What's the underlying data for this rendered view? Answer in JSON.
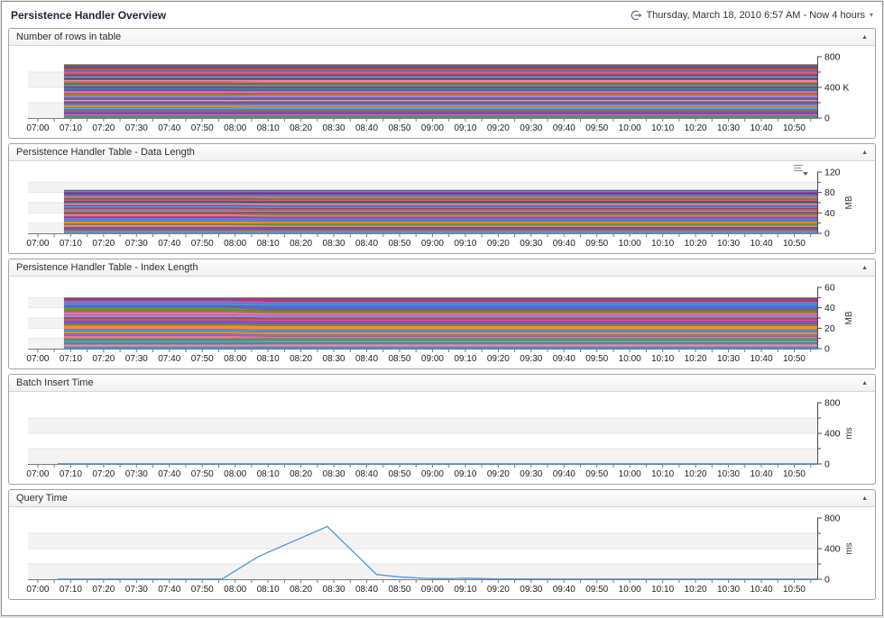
{
  "page": {
    "title": "Persistence Handler Overview",
    "timeframe_label": "Thursday, March 18, 2010 6:57 AM - Now 4 hours"
  },
  "icons": {
    "timeframe": "clock-forward-arrow",
    "collapse_glyph": "▲",
    "caret_glyph": "▾",
    "legend_menu": "list-lines-dropdown"
  },
  "colors": {
    "accent_line": "#4a97d9",
    "axis": "#7a7a7a",
    "band_gray": "#f3f3f3",
    "grid": "#e6e6e6"
  },
  "panels": [
    {
      "title": "Number of rows in table"
    },
    {
      "title": "Persistence Handler Table - Data Length"
    },
    {
      "title": "Persistence Handler Table - Index Length"
    },
    {
      "title": "Batch Insert Time"
    },
    {
      "title": "Query Time"
    }
  ],
  "x_axis": {
    "start": "06:57",
    "end": "10:57",
    "tick_every_min": 5,
    "label_every_min": 10,
    "labels": [
      "07:00",
      "07:10",
      "07:20",
      "07:30",
      "07:40",
      "07:50",
      "08:00",
      "08:10",
      "08:20",
      "08:30",
      "08:40",
      "08:50",
      "09:00",
      "09:10",
      "09:20",
      "09:30",
      "09:40",
      "09:50",
      "10:00",
      "10:10",
      "10:20",
      "10:30",
      "10:40",
      "10:50"
    ]
  },
  "chart_data": [
    {
      "type": "area",
      "title": "Number of rows in table",
      "ylabel": "",
      "ylim": [
        0,
        800
      ],
      "yticks": [
        {
          "v": 0,
          "l": "0"
        },
        {
          "v": 400,
          "l": "400 K"
        },
        {
          "v": 800,
          "l": "800"
        }
      ],
      "minor": 200,
      "x_range": [
        "06:57",
        "10:57"
      ],
      "data_start": "07:08",
      "shift": [
        "07:57",
        "08:09"
      ],
      "stack_total_before": 700,
      "stack_total_after": 700,
      "bands": [
        [
          "#3f9bdc",
          16
        ],
        [
          "#8a8a2e",
          8
        ],
        [
          "#ee6fa5",
          14
        ],
        [
          "#a05050",
          10
        ],
        [
          "#6f5bd1",
          18
        ],
        [
          "#e8538c",
          12
        ],
        [
          "#5f9e3e",
          10
        ],
        [
          "#45aee8",
          20,
          24
        ],
        [
          "#f08f33",
          22,
          18
        ],
        [
          "#8a6fd1",
          16
        ],
        [
          "#b5329b",
          10
        ],
        [
          "#2f9090",
          9
        ],
        [
          "#f28bb1",
          18
        ],
        [
          "#4f6fd0",
          12
        ],
        [
          "#b5534b",
          10
        ],
        [
          "#9b8ae0",
          20,
          24
        ],
        [
          "#e07b20",
          12
        ],
        [
          "#8a8a2e",
          10
        ],
        [
          "#ee6fa5",
          24,
          20
        ],
        [
          "#7545bb",
          14
        ],
        [
          "#3f9bdc",
          12
        ],
        [
          "#8a6a4a",
          9
        ],
        [
          "#c23b5e",
          12
        ],
        [
          "#45aee8",
          14
        ],
        [
          "#5f9e3e",
          9
        ],
        [
          "#6f5bd1",
          13,
          9
        ],
        [
          "#f08f33",
          11
        ],
        [
          "#f28bb1",
          18,
          22
        ],
        [
          "#3b4db8",
          11
        ],
        [
          "#a05050",
          9
        ],
        [
          "#9b8ae0",
          14
        ],
        [
          "#2f9090",
          8
        ],
        [
          "#b5329b",
          12
        ],
        [
          "#9aa83a",
          10
        ],
        [
          "#e8538c",
          16
        ],
        [
          "#3f9bdc",
          12
        ],
        [
          "#8a6fd1",
          11
        ],
        [
          "#e07b20",
          9
        ],
        [
          "#c23b5e",
          10
        ],
        [
          "#a05195",
          9
        ],
        [
          "#4f6fd0",
          10
        ],
        [
          "#6e6e22",
          12
        ]
      ]
    },
    {
      "type": "area",
      "title": "Persistence Handler Table - Data Length",
      "ylabel": "MB",
      "ylim": [
        0,
        120
      ],
      "yticks": [
        {
          "v": 0,
          "l": "0"
        },
        {
          "v": 40,
          "l": "40"
        },
        {
          "v": 80,
          "l": "80"
        },
        {
          "v": 120,
          "l": "120"
        }
      ],
      "minor": 20,
      "x_range": [
        "06:57",
        "10:57"
      ],
      "data_start": "07:08",
      "shift": [
        "07:59",
        "08:12"
      ],
      "stack_total_before": 85,
      "stack_total_after": 85,
      "bands": [
        [
          "#45aee8",
          10
        ],
        [
          "#ee6fa5",
          12
        ],
        [
          "#8a8a2e",
          7
        ],
        [
          "#6f5bd1",
          14
        ],
        [
          "#b5534b",
          8
        ],
        [
          "#f28bb1",
          16,
          12
        ],
        [
          "#5f9e3e",
          8,
          12
        ],
        [
          "#f08f33",
          18
        ],
        [
          "#3f9bdc",
          14
        ],
        [
          "#8a6fd1",
          16
        ],
        [
          "#b5329b",
          8
        ],
        [
          "#ee6fa5",
          20,
          16
        ],
        [
          "#8a8a2e",
          9,
          13
        ],
        [
          "#a05050",
          8
        ],
        [
          "#9b8ae0",
          14
        ],
        [
          "#e07b20",
          10
        ],
        [
          "#c23b5e",
          9
        ],
        [
          "#45aee8",
          12
        ],
        [
          "#6f5bd1",
          10
        ],
        [
          "#f28bb1",
          14
        ],
        [
          "#5f9e3e",
          8
        ],
        [
          "#3b4db8",
          9
        ],
        [
          "#e8538c",
          12,
          16
        ],
        [
          "#8a6a4a",
          7
        ],
        [
          "#9aa83a",
          8,
          12
        ],
        [
          "#ee6fa5",
          13,
          9
        ],
        [
          "#3f9bdc",
          10
        ],
        [
          "#7545bb",
          11
        ],
        [
          "#b5329b",
          8
        ],
        [
          "#8a6fd1",
          12
        ],
        [
          "#2f9090",
          6
        ]
      ]
    },
    {
      "type": "area",
      "title": "Persistence Handler Table - Index Length",
      "ylabel": "MB",
      "ylim": [
        0,
        60
      ],
      "yticks": [
        {
          "v": 0,
          "l": "0"
        },
        {
          "v": 20,
          "l": "20"
        },
        {
          "v": 40,
          "l": "40"
        },
        {
          "v": 60,
          "l": "60"
        }
      ],
      "minor": 10,
      "x_range": [
        "06:57",
        "10:57"
      ],
      "data_start": "07:08",
      "shift": [
        "07:58",
        "08:10"
      ],
      "stack_total_before": 50,
      "stack_total_after": 50,
      "bands": [
        [
          "#3f9bdc",
          8
        ],
        [
          "#f28bb1",
          10
        ],
        [
          "#8a8a2e",
          6
        ],
        [
          "#45aee8",
          9
        ],
        [
          "#5f9e3e",
          8
        ],
        [
          "#ee6fa5",
          12,
          8
        ],
        [
          "#8a6fd1",
          8
        ],
        [
          "#f08f33",
          9
        ],
        [
          "#3f9bdc",
          10
        ],
        [
          "#f08f33",
          16
        ],
        [
          "#8a8a2e",
          7
        ],
        [
          "#6f5bd1",
          12
        ],
        [
          "#e8538c",
          7
        ],
        [
          "#a05050",
          6
        ],
        [
          "#9b8ae0",
          10
        ],
        [
          "#ee6fa5",
          13,
          10
        ],
        [
          "#8a8a2e",
          8
        ],
        [
          "#5f9e3e",
          10,
          4
        ],
        [
          "#6f5bd1",
          9,
          15
        ],
        [
          "#3f9bdc",
          9
        ],
        [
          "#8a6fd1",
          10
        ],
        [
          "#c23b5e",
          5,
          8
        ],
        [
          "#b5329b",
          4
        ],
        [
          "#2f9090",
          3
        ]
      ]
    },
    {
      "type": "line",
      "title": "Batch Insert Time",
      "ylabel": "ms",
      "ylim": [
        0,
        800
      ],
      "yticks": [
        {
          "v": 0,
          "l": "0"
        },
        {
          "v": 400,
          "l": "400"
        },
        {
          "v": 800,
          "l": "800"
        }
      ],
      "minor": 200,
      "x_range": [
        "06:57",
        "10:57"
      ],
      "line_color": "#4a97d9",
      "points": [
        [
          "07:06",
          3
        ],
        [
          "10:57",
          3
        ]
      ]
    },
    {
      "type": "line",
      "title": "Query Time",
      "ylabel": "ms",
      "ylim": [
        0,
        800
      ],
      "yticks": [
        {
          "v": 0,
          "l": "0"
        },
        {
          "v": 400,
          "l": "400"
        },
        {
          "v": 800,
          "l": "800"
        }
      ],
      "minor": 200,
      "x_range": [
        "06:57",
        "10:57"
      ],
      "line_color": "#4a97d9",
      "points": [
        [
          "07:06",
          3
        ],
        [
          "07:56",
          3
        ],
        [
          "08:07",
          295
        ],
        [
          "08:28",
          690
        ],
        [
          "08:43",
          62
        ],
        [
          "08:50",
          30
        ],
        [
          "08:58",
          12
        ],
        [
          "09:04",
          8
        ],
        [
          "09:10",
          14
        ],
        [
          "09:18",
          5
        ],
        [
          "09:40",
          3
        ],
        [
          "10:57",
          3
        ]
      ]
    }
  ]
}
